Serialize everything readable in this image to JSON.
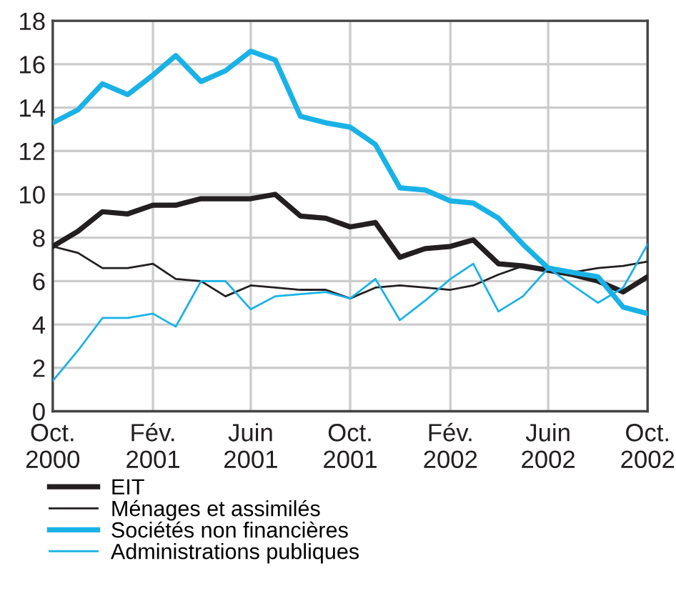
{
  "chart_data": {
    "type": "line",
    "x": [
      "2000-10",
      "2000-11",
      "2000-12",
      "2001-01",
      "2001-02",
      "2001-03",
      "2001-04",
      "2001-05",
      "2001-06",
      "2001-07",
      "2001-08",
      "2001-09",
      "2001-10",
      "2001-11",
      "2001-12",
      "2002-01",
      "2002-02",
      "2002-03",
      "2002-04",
      "2002-05",
      "2002-06",
      "2002-07",
      "2002-08",
      "2002-09",
      "2002-10"
    ],
    "series": [
      {
        "name": "EIT",
        "color": "#231f20",
        "values": [
          7.6,
          8.3,
          9.2,
          9.1,
          9.5,
          9.5,
          9.8,
          9.8,
          9.8,
          10.0,
          9.0,
          8.9,
          8.5,
          8.7,
          7.1,
          7.5,
          7.6,
          7.9,
          6.8,
          6.7,
          6.5,
          6.3,
          6.0,
          5.5,
          6.2
        ]
      },
      {
        "name": "Ménages et assimilés",
        "color": "#231f20",
        "values": [
          7.6,
          7.3,
          6.6,
          6.6,
          6.8,
          6.1,
          6.0,
          5.3,
          5.8,
          5.7,
          5.6,
          5.6,
          5.2,
          5.7,
          5.8,
          5.7,
          5.6,
          5.8,
          6.3,
          6.7,
          6.6,
          6.4,
          6.6,
          6.7,
          6.9
        ]
      },
      {
        "name": "Sociétés non financières",
        "color": "#1ab2e6",
        "values": [
          13.3,
          13.9,
          15.1,
          14.6,
          15.5,
          16.4,
          15.2,
          15.7,
          16.6,
          16.2,
          13.6,
          13.3,
          13.1,
          12.3,
          10.3,
          10.2,
          9.7,
          9.6,
          8.9,
          7.7,
          6.6,
          6.4,
          6.2,
          4.8,
          4.5
        ]
      },
      {
        "name": "Administrations publiques",
        "color": "#1ab2e6",
        "values": [
          1.4,
          2.8,
          4.3,
          4.3,
          4.5,
          3.9,
          6.0,
          6.0,
          4.7,
          5.3,
          5.4,
          5.5,
          5.2,
          6.1,
          4.2,
          5.1,
          6.1,
          6.8,
          4.6,
          5.3,
          6.6,
          5.8,
          5.0,
          5.7,
          7.7
        ]
      }
    ],
    "xlim": [
      "2000-10",
      "2002-10"
    ],
    "xticks": [
      {
        "value": "2000-10",
        "label": "Oct.\n2000"
      },
      {
        "value": "2001-02",
        "label": "Fév.\n2001"
      },
      {
        "value": "2001-06",
        "label": "Juin\n2001"
      },
      {
        "value": "2001-10",
        "label": "Oct.\n2001"
      },
      {
        "value": "2002-02",
        "label": "Fév.\n2002"
      },
      {
        "value": "2002-06",
        "label": "Juin\n2002"
      },
      {
        "value": "2002-10",
        "label": "Oct.\n2002"
      }
    ],
    "ylim": [
      0,
      18
    ],
    "yticks": [
      0,
      2,
      4,
      6,
      8,
      10,
      12,
      14,
      16,
      18
    ],
    "grid": true,
    "legend": "bottom",
    "marker": "none",
    "line_style": "solid"
  }
}
